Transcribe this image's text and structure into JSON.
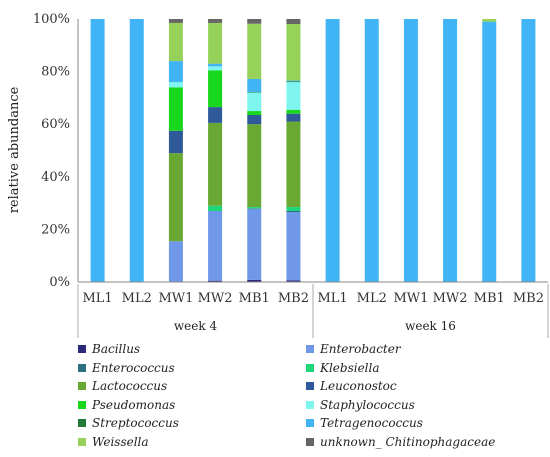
{
  "chart_data": {
    "type": "bar",
    "stacked": true,
    "ylabel": "relative abundance",
    "ylim": [
      0,
      100
    ],
    "yticks": [
      "0%",
      "20%",
      "40%",
      "60%",
      "80%",
      "100%"
    ],
    "categories": [
      "ML1",
      "ML2",
      "MW1",
      "MW2",
      "MB1",
      "MB2",
      "ML1",
      "ML2",
      "MW1",
      "MW2",
      "MB1",
      "MB2"
    ],
    "groups": [
      {
        "label": "week 4",
        "count": 6
      },
      {
        "label": "week 16",
        "count": 6
      }
    ],
    "legend_columns": 2,
    "series": [
      {
        "name": "Bacillus",
        "color": "#2e2a7a",
        "values": [
          0,
          0,
          0,
          0.5,
          0.8,
          0.6,
          0,
          0,
          0,
          0,
          0,
          0
        ]
      },
      {
        "name": "Enterobacter",
        "color": "#6f98e8",
        "values": [
          0,
          0,
          15.5,
          26.5,
          27,
          26,
          0,
          0,
          0,
          0,
          0,
          0
        ]
      },
      {
        "name": "Enterococcus",
        "color": "#2a6f7e",
        "values": [
          0,
          0,
          0,
          0,
          0.2,
          0.4,
          0,
          0,
          0,
          0,
          0,
          0
        ]
      },
      {
        "name": "Klebsiella",
        "color": "#1ed67a",
        "values": [
          0,
          0,
          0,
          2,
          0.5,
          1.5,
          0,
          0,
          0,
          0,
          0,
          0
        ]
      },
      {
        "name": "Lactococcus",
        "color": "#6aa834",
        "values": [
          0,
          0,
          33.5,
          31.5,
          31.5,
          32.5,
          0,
          0,
          0,
          0,
          0,
          0
        ]
      },
      {
        "name": "Leuconostoc",
        "color": "#2f5a9a",
        "values": [
          0,
          0,
          8.5,
          6,
          3.5,
          3,
          0,
          0,
          0,
          0,
          0,
          0
        ]
      },
      {
        "name": "Pseudomonas",
        "color": "#18d81e",
        "values": [
          0,
          0,
          16.5,
          14,
          1.5,
          1.5,
          0,
          0,
          0,
          0,
          0,
          0
        ]
      },
      {
        "name": "Staphylococcus",
        "color": "#7ef5ee",
        "values": [
          0,
          0,
          2,
          1.5,
          7,
          10.5,
          0,
          0,
          0,
          0,
          0,
          0
        ]
      },
      {
        "name": "Streptococcus",
        "color": "#1f7a3a",
        "values": [
          0,
          0,
          0,
          0,
          0.2,
          0.3,
          0,
          0,
          0,
          0,
          0,
          0
        ]
      },
      {
        "name": "Tetragenococcus",
        "color": "#41b4f5",
        "values": [
          100,
          100,
          8,
          1,
          5,
          0.3,
          100,
          100,
          100,
          100,
          99,
          100
        ]
      },
      {
        "name": "Weissella",
        "color": "#96d15a",
        "values": [
          0,
          0,
          14.5,
          15.5,
          21,
          21.5,
          0,
          0,
          0,
          0,
          1,
          0
        ]
      },
      {
        "name": "unknown_ Chitinophagaceae",
        "color": "#666666",
        "values": [
          0,
          0,
          1.5,
          1.5,
          1.8,
          1.9,
          0,
          0,
          0,
          0,
          0,
          0
        ]
      }
    ]
  }
}
